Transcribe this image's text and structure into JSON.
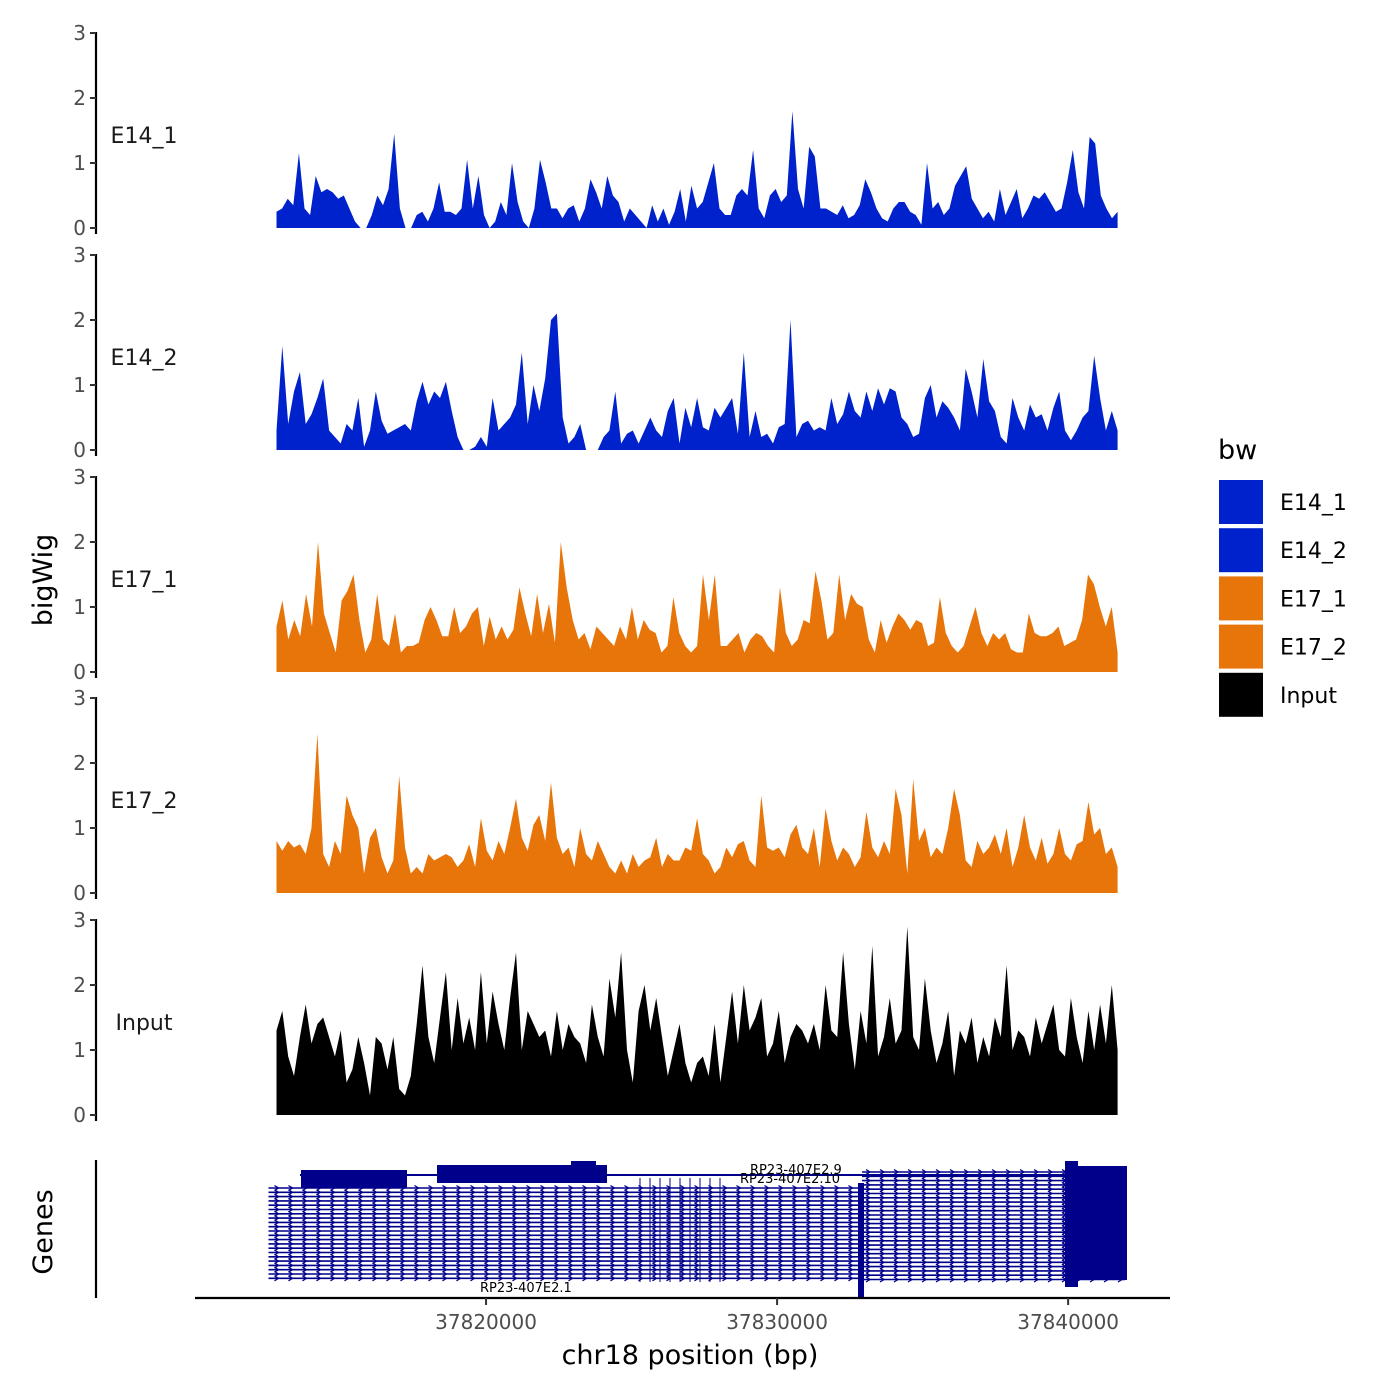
{
  "chart_data": {
    "type": "area",
    "title": "",
    "xlabel": "chr18 position (bp)",
    "ylabel": "bigWig",
    "genes_label": "Genes",
    "x_range": [
      37812800,
      37841700
    ],
    "xlim": [
      37810000,
      37843500
    ],
    "x_ticks": [
      37820000,
      37830000,
      37840000
    ],
    "x_tick_labels": [
      "37820000",
      "37830000",
      "37840000"
    ],
    "ylim": [
      0,
      3
    ],
    "y_ticks": [
      0,
      1,
      2,
      3
    ],
    "y_tick_labels": [
      "0",
      "1",
      "2",
      "3"
    ],
    "legend": {
      "title": "bw",
      "position": "right",
      "items": [
        {
          "label": "E14_1",
          "color": "#0022CC"
        },
        {
          "label": "E14_2",
          "color": "#0022CC"
        },
        {
          "label": "E17_1",
          "color": "#E8750A"
        },
        {
          "label": "E17_2",
          "color": "#E8750A"
        },
        {
          "label": "Input",
          "color": "#000000"
        }
      ]
    },
    "series": [
      {
        "name": "E14_1",
        "color": "#0022CC",
        "bin_values": [
          0.25,
          0.3,
          0.45,
          0.35,
          1.15,
          0.3,
          0.2,
          0.8,
          0.55,
          0.6,
          0.55,
          0.45,
          0.5,
          0.3,
          0.1,
          0,
          0,
          0.2,
          0.5,
          0.35,
          0.6,
          1.45,
          0.3,
          0,
          0,
          0.2,
          0.25,
          0.1,
          0.3,
          0.7,
          0.25,
          0.25,
          0.2,
          0.3,
          1.05,
          0.3,
          0.8,
          0.2,
          0,
          0.1,
          0.4,
          0.2,
          1.0,
          0.4,
          0.1,
          0,
          0.3,
          1.05,
          0.7,
          0.3,
          0.3,
          0.15,
          0.3,
          0.35,
          0.1,
          0.3,
          0.75,
          0.55,
          0.3,
          0.8,
          0.5,
          0.4,
          0.1,
          0.3,
          0.2,
          0.1,
          0,
          0.35,
          0.1,
          0.3,
          0.05,
          0.25,
          0.6,
          0.1,
          0.65,
          0.3,
          0.4,
          0.7,
          1.0,
          0.3,
          0.2,
          0.2,
          0.5,
          0.6,
          0.5,
          1.2,
          0.3,
          0.15,
          0.5,
          0.6,
          0.4,
          0.5,
          1.8,
          0.6,
          0.3,
          1.25,
          1.1,
          0.3,
          0.3,
          0.25,
          0.2,
          0.35,
          0.15,
          0.2,
          0.35,
          0.75,
          0.55,
          0.3,
          0.15,
          0.1,
          0.3,
          0.4,
          0.4,
          0.25,
          0.2,
          0.05,
          1.0,
          0.3,
          0.4,
          0.2,
          0.3,
          0.65,
          0.8,
          0.95,
          0.45,
          0.3,
          0.15,
          0.25,
          0.1,
          0.6,
          0.2,
          0.4,
          0.6,
          0.15,
          0.3,
          0.5,
          0.45,
          0.55,
          0.4,
          0.25,
          0.3,
          0.7,
          1.2,
          0.55,
          0.3,
          1.4,
          1.3,
          0.5,
          0.3,
          0.15,
          0.25
        ]
      },
      {
        "name": "E14_2",
        "color": "#0022CC",
        "bin_values": [
          0.3,
          1.6,
          0.4,
          0.9,
          1.2,
          0.4,
          0.55,
          0.8,
          1.1,
          0.3,
          0.2,
          0.1,
          0.4,
          0.3,
          0.8,
          0.05,
          0.3,
          0.9,
          0.45,
          0.25,
          0.3,
          0.35,
          0.4,
          0.3,
          0.75,
          1.05,
          0.7,
          0.9,
          0.8,
          1.05,
          0.6,
          0.2,
          0,
          0,
          0.05,
          0.2,
          0.05,
          0.8,
          0.3,
          0.4,
          0.5,
          0.7,
          1.5,
          0.4,
          1.0,
          0.6,
          1.1,
          2.0,
          2.1,
          0.5,
          0.1,
          0.2,
          0.4,
          0,
          0,
          0,
          0.2,
          0.3,
          0.9,
          0.1,
          0.25,
          0.3,
          0.1,
          0.3,
          0.5,
          0.3,
          0.2,
          0.6,
          0.8,
          0.1,
          0.65,
          0.35,
          0.8,
          0.35,
          0.3,
          0.65,
          0.5,
          0.65,
          0.8,
          0.25,
          1.5,
          0.2,
          0.6,
          0.2,
          0.25,
          0.1,
          0.35,
          0.4,
          2.0,
          0.2,
          0.4,
          0.45,
          0.3,
          0.35,
          0.3,
          0.8,
          0.4,
          0.55,
          0.9,
          0.6,
          0.5,
          0.9,
          0.6,
          0.95,
          0.7,
          0.95,
          0.9,
          0.5,
          0.4,
          0.2,
          0.25,
          0.8,
          1.0,
          0.5,
          0.75,
          0.65,
          0.5,
          0.3,
          1.25,
          0.9,
          0.5,
          1.4,
          0.75,
          0.6,
          0.2,
          0.1,
          0.8,
          0.5,
          0.3,
          0.7,
          0.5,
          0.55,
          0.3,
          0.65,
          0.9,
          0.3,
          0.15,
          0.3,
          0.5,
          0.6,
          1.45,
          0.8,
          0.3,
          0.6,
          0.3
        ]
      },
      {
        "name": "E17_1",
        "color": "#E8750A",
        "bin_values": [
          0.7,
          1.1,
          0.5,
          0.8,
          0.55,
          1.2,
          0.7,
          2.0,
          0.9,
          0.6,
          0.3,
          1.1,
          1.25,
          1.5,
          0.8,
          0.3,
          0.5,
          1.2,
          0.5,
          0.4,
          0.9,
          0.3,
          0.4,
          0.4,
          0.45,
          0.8,
          1.0,
          0.8,
          0.55,
          0.55,
          1.0,
          0.6,
          0.7,
          0.9,
          1.0,
          0.4,
          0.85,
          0.5,
          0.7,
          0.5,
          0.65,
          1.3,
          0.9,
          0.55,
          1.2,
          0.6,
          1.05,
          0.45,
          2.0,
          1.3,
          0.8,
          0.5,
          0.6,
          0.35,
          0.7,
          0.6,
          0.5,
          0.4,
          0.7,
          0.5,
          1.0,
          0.5,
          0.8,
          0.65,
          0.6,
          0.3,
          0.4,
          1.15,
          0.6,
          0.4,
          0.3,
          0.4,
          1.5,
          0.8,
          1.5,
          0.4,
          0.4,
          0.5,
          0.6,
          0.3,
          0.5,
          0.6,
          0.55,
          0.4,
          0.3,
          1.3,
          0.6,
          0.4,
          0.5,
          0.8,
          0.75,
          1.55,
          1.1,
          0.5,
          0.6,
          1.5,
          0.8,
          1.2,
          1.05,
          1.0,
          0.5,
          0.3,
          0.8,
          0.45,
          0.7,
          0.9,
          0.8,
          0.65,
          0.8,
          0.75,
          0.4,
          0.45,
          1.15,
          0.6,
          0.4,
          0.3,
          0.4,
          0.7,
          1.0,
          0.6,
          0.4,
          0.6,
          0.5,
          0.6,
          0.35,
          0.3,
          0.3,
          0.9,
          0.6,
          0.55,
          0.55,
          0.6,
          0.7,
          0.4,
          0.45,
          0.5,
          0.8,
          1.5,
          1.35,
          1.0,
          0.7,
          1.0,
          0.3
        ]
      },
      {
        "name": "E17_2",
        "color": "#E8750A",
        "bin_values": [
          0.8,
          0.65,
          0.8,
          0.7,
          0.75,
          0.6,
          1.0,
          2.45,
          0.6,
          0.4,
          0.8,
          0.6,
          1.5,
          1.2,
          1.0,
          0.3,
          0.85,
          1.0,
          0.55,
          0.3,
          0.5,
          1.8,
          0.7,
          0.3,
          0.4,
          0.3,
          0.6,
          0.5,
          0.55,
          0.6,
          0.55,
          0.4,
          0.5,
          0.75,
          0.4,
          1.15,
          0.65,
          0.5,
          0.8,
          0.6,
          1.0,
          1.45,
          0.85,
          0.65,
          1.05,
          1.2,
          0.8,
          1.7,
          0.85,
          0.6,
          0.7,
          0.4,
          1.0,
          0.6,
          0.5,
          0.8,
          0.6,
          0.4,
          0.3,
          0.5,
          0.3,
          0.6,
          0.4,
          0.5,
          0.55,
          0.85,
          0.4,
          0.6,
          0.5,
          0.5,
          0.7,
          0.65,
          1.15,
          0.6,
          0.5,
          0.3,
          0.4,
          0.7,
          0.55,
          0.75,
          0.8,
          0.5,
          0.4,
          1.5,
          0.7,
          0.65,
          0.7,
          0.55,
          0.9,
          1.05,
          0.7,
          0.6,
          1.0,
          0.4,
          1.3,
          0.8,
          0.5,
          0.7,
          0.6,
          0.4,
          0.55,
          1.25,
          0.7,
          0.55,
          0.8,
          0.6,
          1.6,
          1.2,
          0.3,
          1.75,
          0.8,
          1.0,
          0.55,
          0.7,
          0.6,
          1.0,
          1.6,
          1.2,
          0.5,
          0.4,
          0.8,
          0.6,
          0.7,
          0.9,
          0.6,
          1.0,
          0.4,
          0.7,
          1.2,
          0.7,
          0.5,
          0.85,
          0.45,
          0.6,
          1.0,
          0.6,
          0.5,
          0.75,
          0.8,
          1.4,
          0.9,
          1.0,
          0.6,
          0.7,
          0.4
        ]
      },
      {
        "name": "Input",
        "color": "#000000",
        "bin_values": [
          1.3,
          1.6,
          0.9,
          0.6,
          1.2,
          1.7,
          1.1,
          1.4,
          1.5,
          1.2,
          0.9,
          1.3,
          0.5,
          0.7,
          1.2,
          0.8,
          0.3,
          1.2,
          1.1,
          0.7,
          1.2,
          0.4,
          0.3,
          0.6,
          1.4,
          2.3,
          1.2,
          0.8,
          1.5,
          2.2,
          1.0,
          1.8,
          1.1,
          1.5,
          1.0,
          2.2,
          1.1,
          1.9,
          1.4,
          1.0,
          1.8,
          2.5,
          1.0,
          1.6,
          1.4,
          1.2,
          1.3,
          0.9,
          1.6,
          1.0,
          1.4,
          1.2,
          1.1,
          0.8,
          1.7,
          1.2,
          0.9,
          2.1,
          1.5,
          2.5,
          1.0,
          0.5,
          1.6,
          2.0,
          1.3,
          1.8,
          1.2,
          0.6,
          1.0,
          1.4,
          0.8,
          0.5,
          0.8,
          0.9,
          0.6,
          1.4,
          0.5,
          1.2,
          1.9,
          1.1,
          2.0,
          1.3,
          1.5,
          1.8,
          0.9,
          1.1,
          1.6,
          0.8,
          1.2,
          1.4,
          1.3,
          1.1,
          1.4,
          1.0,
          2.0,
          1.3,
          1.2,
          2.5,
          1.4,
          0.7,
          1.6,
          1.1,
          2.6,
          0.9,
          1.2,
          1.8,
          1.1,
          1.3,
          2.9,
          1.2,
          1.0,
          2.1,
          1.3,
          0.8,
          1.1,
          1.6,
          0.6,
          1.3,
          1.1,
          1.5,
          0.8,
          1.2,
          0.9,
          1.5,
          1.2,
          2.3,
          1.0,
          1.3,
          1.2,
          0.9,
          1.5,
          1.1,
          1.4,
          1.7,
          1.0,
          0.9,
          1.8,
          1.2,
          0.8,
          1.6,
          1.0,
          1.7,
          1.1,
          2.0,
          1.0
        ]
      }
    ],
    "genes": {
      "color": "#00008B",
      "labels": [
        "RP23-407E2.9",
        "RP23-407E2.10",
        "RP23-407E2.1"
      ]
    }
  }
}
